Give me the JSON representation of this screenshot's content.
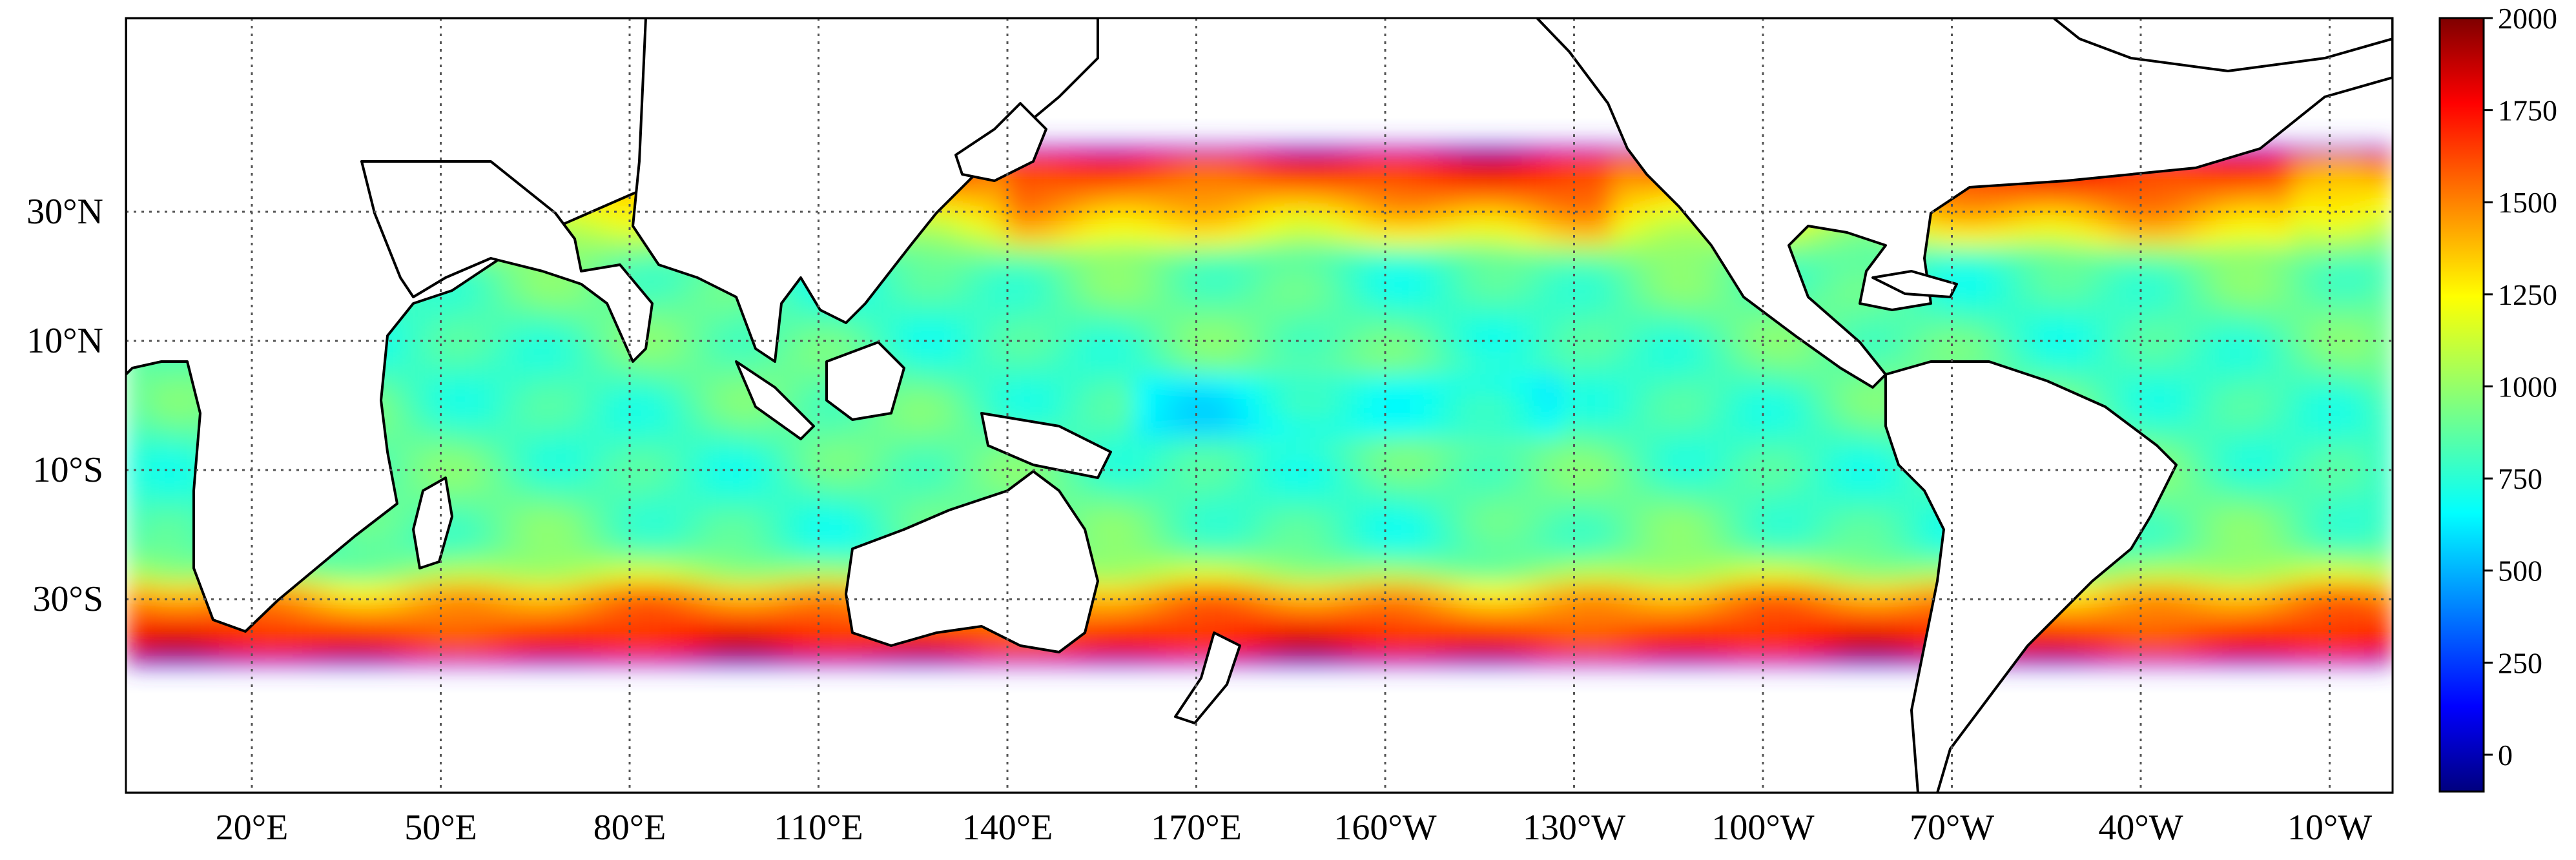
{
  "chart_data": {
    "type": "heatmap",
    "title": "",
    "x_axis": {
      "tick_labels": [
        "20°E",
        "50°E",
        "80°E",
        "110°E",
        "140°E",
        "170°E",
        "160°W",
        "130°W",
        "100°W",
        "70°W",
        "40°W",
        "10°W"
      ],
      "tick_values_deg_east": [
        20,
        50,
        80,
        110,
        140,
        170,
        200,
        230,
        260,
        290,
        320,
        350
      ],
      "range_deg_east": [
        0,
        360
      ]
    },
    "y_axis": {
      "tick_labels": [
        "30°N",
        "10°N",
        "10°S",
        "30°S"
      ],
      "tick_values_deg": [
        30,
        10,
        -10,
        -30
      ],
      "range_deg": [
        -60,
        60
      ]
    },
    "data_extent_lat": [
      -40,
      40
    ],
    "colorbar": {
      "colormap": "jet",
      "range": [
        -100,
        2000
      ],
      "tick_labels": [
        "0",
        "250",
        "500",
        "750",
        "1000",
        "1250",
        "1500",
        "1750",
        "2000"
      ],
      "tick_values": [
        0,
        250,
        500,
        750,
        1000,
        1250,
        1500,
        1750,
        2000
      ]
    },
    "field_description_regions": [
      {
        "name": "North Pacific subtropical band",
        "lat": [
          25,
          40
        ],
        "approx_value": 1600
      },
      {
        "name": "North Atlantic subtropical band",
        "lat": [
          25,
          40
        ],
        "approx_value": 1650
      },
      {
        "name": "Southern ocean band",
        "lat": [
          -40,
          -28
        ],
        "approx_value": 1700
      },
      {
        "name": "Equatorial band",
        "lat": [
          -10,
          10
        ],
        "approx_value": 850
      }
    ],
    "grid": true
  }
}
